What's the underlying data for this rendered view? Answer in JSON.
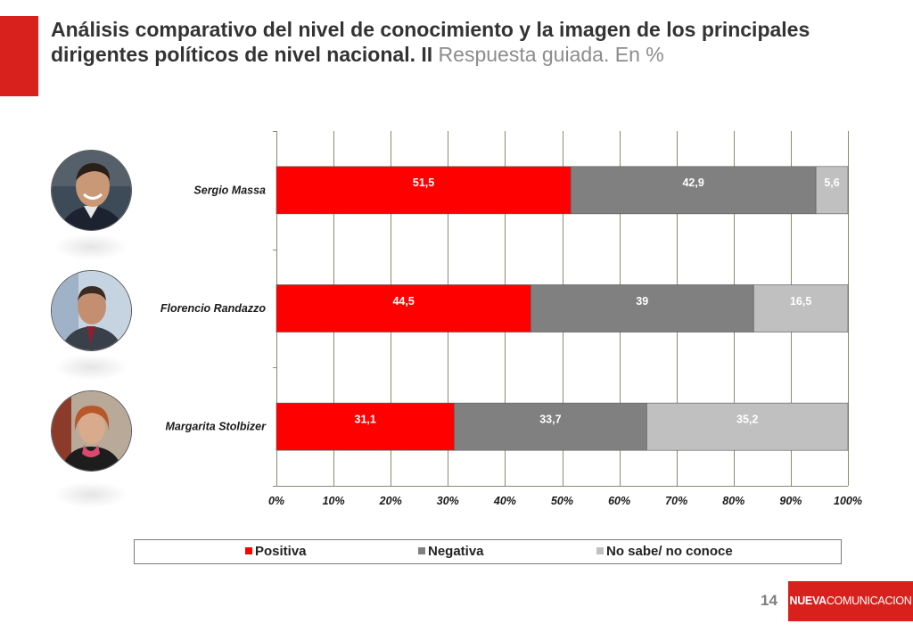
{
  "header": {
    "title": "Análisis comparativo del nivel de conocimiento y la imagen de los principales dirigentes políticos de nivel nacional. II",
    "subtitle": "Respuesta guiada. En %"
  },
  "chart_data": {
    "type": "bar",
    "orientation": "horizontal",
    "stacked": true,
    "categories": [
      "Sergio Massa",
      "Florencio Randazzo",
      "Margarita Stolbizer"
    ],
    "series": [
      {
        "name": "Positiva",
        "values": [
          51.5,
          44.5,
          31.1
        ],
        "labels": [
          "51,5",
          "44,5",
          "31,1"
        ],
        "color": "#ff0000",
        "label_color": "#ffffff"
      },
      {
        "name": "Negativa",
        "values": [
          42.9,
          39,
          33.7
        ],
        "labels": [
          "42,9",
          "39",
          "33,7"
        ],
        "color": "#808080",
        "label_color": "#ffffff"
      },
      {
        "name": "No sabe/ no conoce",
        "values": [
          5.6,
          16.5,
          35.2
        ],
        "labels": [
          "5,6",
          "16,5",
          "35,2"
        ],
        "color": "#c0c0c0",
        "label_color": "#ffffff"
      }
    ],
    "xlim": [
      0,
      100
    ],
    "x_ticks": [
      "0%",
      "10%",
      "20%",
      "30%",
      "40%",
      "50%",
      "60%",
      "70%",
      "80%",
      "90%",
      "100%"
    ],
    "grid": "vertical",
    "legend_position": "bottom"
  },
  "footer": {
    "page_number": "14",
    "brand_bold": "NUEVA",
    "brand_rest": "COMUNICACION"
  },
  "colors": {
    "accent": "#d8211d"
  },
  "icons": {
    "portraits": [
      "sergio-massa-photo",
      "florencio-randazzo-photo",
      "margarita-stolbizer-photo"
    ]
  }
}
